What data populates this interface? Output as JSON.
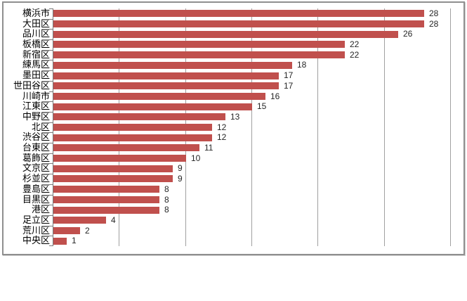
{
  "chart_data": {
    "type": "bar",
    "orientation": "horizontal",
    "title": "",
    "xlabel": "",
    "ylabel": "",
    "categories": [
      "横浜市",
      "大田区",
      "品川区",
      "板橋区",
      "新宿区",
      "練馬区",
      "墨田区",
      "世田谷区",
      "川崎市",
      "江東区",
      "中野区",
      "北区",
      "渋谷区",
      "台東区",
      "葛飾区",
      "文京区",
      "杉並区",
      "豊島区",
      "目黒区",
      "港区",
      "足立区",
      "荒川区",
      "中央区"
    ],
    "values": [
      28,
      28,
      26,
      22,
      22,
      18,
      17,
      17,
      16,
      15,
      13,
      12,
      12,
      11,
      10,
      9,
      9,
      8,
      8,
      8,
      4,
      2,
      1
    ],
    "xlim": [
      0,
      30
    ],
    "x_major_unit": 5,
    "gridlines": "vertical-major",
    "x_tick_labels": "none",
    "data_labels": "outside-end",
    "legend": "none"
  },
  "colors": {
    "bar": "#c0504d",
    "gridline": "#a0a0a0",
    "axis": "#7a7a7a",
    "frame_border": "#8f8f8f",
    "category_text": "#000000",
    "value_text": "#262626",
    "background": "#ffffff"
  }
}
